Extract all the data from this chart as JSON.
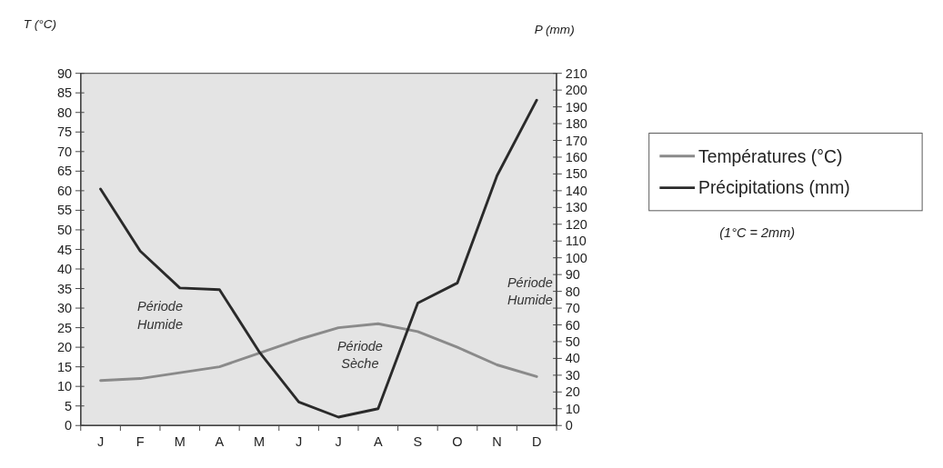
{
  "chart_data": {
    "type": "line",
    "ylabel": "T (°C)",
    "y2label": "P (mm)",
    "categories": [
      "J",
      "F",
      "M",
      "A",
      "M",
      "J",
      "J",
      "A",
      "S",
      "O",
      "N",
      "D"
    ],
    "series": [
      {
        "name": "Températures (°C)",
        "color": "#8a8a8a",
        "values": [
          11.5,
          12,
          13.5,
          15,
          18.5,
          22,
          25,
          26,
          24,
          20,
          15.5,
          12.5
        ]
      },
      {
        "name": "Précipitations (mm)",
        "color": "#2a2a2a",
        "axis": "y2",
        "values": [
          141,
          104,
          82,
          81,
          44,
          14,
          5,
          10,
          73,
          85,
          149,
          194
        ]
      }
    ],
    "ylim": [
      0,
      90
    ],
    "yticks": [
      0,
      5,
      10,
      15,
      20,
      25,
      30,
      35,
      40,
      45,
      50,
      55,
      60,
      65,
      70,
      75,
      80,
      85,
      90
    ],
    "y2lim": [
      0,
      210
    ],
    "y2ticks": [
      0,
      10,
      20,
      30,
      40,
      50,
      60,
      70,
      80,
      90,
      100,
      110,
      120,
      130,
      140,
      150,
      160,
      170,
      180,
      190,
      200,
      210
    ],
    "grid": false,
    "legend": "right",
    "marker": "none",
    "line_style": "solid",
    "annotations": [
      "Période Humide",
      "Période Sèche",
      "Période Humide",
      "(1°C = 2mm)"
    ]
  }
}
